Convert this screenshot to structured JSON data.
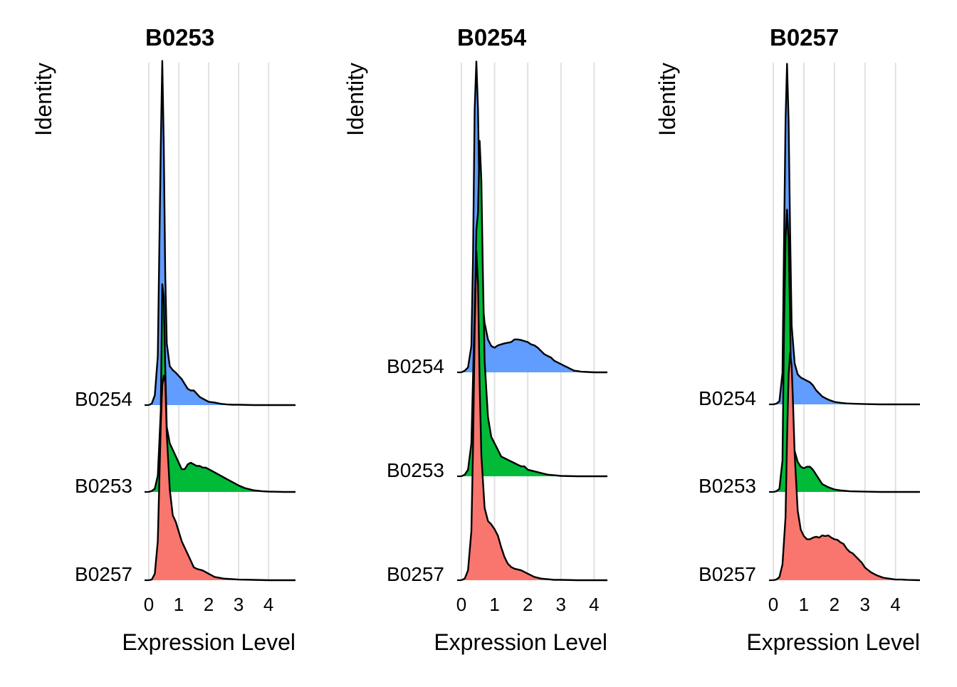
{
  "chart_data": [
    {
      "type": "ridgeline",
      "title": "B0253",
      "xlabel": "Expression Level",
      "ylabel": "Identity",
      "xticks": [
        0,
        1,
        2,
        3,
        4
      ],
      "xlim": [
        0,
        4.9
      ],
      "identities": [
        "B0254",
        "B0253",
        "B0257"
      ],
      "series": [
        {
          "name": "B0254",
          "color": "#619CFF",
          "x": [
            0,
            0.1,
            0.2,
            0.3,
            0.4,
            0.45,
            0.5,
            0.55,
            0.6,
            0.7,
            0.8,
            0.9,
            1.0,
            1.1,
            1.2,
            1.3,
            1.4,
            1.5,
            1.6,
            1.7,
            1.8,
            1.9,
            2.0,
            2.2,
            2.4,
            2.6,
            2.8,
            3.0,
            3.5,
            4.0,
            4.5,
            4.9
          ],
          "density": [
            0,
            0.05,
            0.3,
            1.5,
            8.0,
            10.6,
            8.0,
            4.0,
            1.9,
            1.2,
            1.08,
            1.0,
            0.9,
            0.8,
            0.65,
            0.5,
            0.45,
            0.45,
            0.35,
            0.25,
            0.2,
            0.15,
            0.1,
            0.08,
            0.04,
            0.02,
            0.01,
            0.01,
            0,
            0,
            0,
            0
          ]
        },
        {
          "name": "B0253",
          "color": "#00BA38",
          "x": [
            0,
            0.1,
            0.2,
            0.3,
            0.4,
            0.45,
            0.5,
            0.55,
            0.6,
            0.7,
            0.8,
            0.9,
            1.0,
            1.1,
            1.2,
            1.3,
            1.4,
            1.5,
            1.6,
            1.7,
            1.8,
            1.9,
            2.0,
            2.2,
            2.4,
            2.6,
            2.8,
            3.0,
            3.2,
            3.5,
            3.8,
            4.0,
            4.5,
            4.9
          ],
          "density": [
            0,
            0.03,
            0.1,
            0.5,
            2.5,
            6.4,
            6.0,
            3.8,
            2.0,
            1.5,
            1.3,
            1.1,
            0.9,
            0.7,
            0.7,
            0.85,
            0.9,
            0.85,
            0.8,
            0.8,
            0.75,
            0.75,
            0.7,
            0.6,
            0.5,
            0.4,
            0.3,
            0.2,
            0.12,
            0.05,
            0.02,
            0.01,
            0,
            0
          ]
        },
        {
          "name": "B0257",
          "color": "#F8766D",
          "x": [
            0,
            0.1,
            0.2,
            0.3,
            0.4,
            0.45,
            0.5,
            0.55,
            0.6,
            0.7,
            0.8,
            0.9,
            1.0,
            1.1,
            1.2,
            1.3,
            1.4,
            1.5,
            1.6,
            1.8,
            2.0,
            2.2,
            2.5,
            3.0,
            3.5,
            4.0,
            4.9
          ],
          "density": [
            0,
            0.02,
            0.2,
            1.2,
            4.8,
            6.0,
            6.3,
            6.1,
            4.5,
            2.8,
            2.0,
            1.8,
            1.5,
            1.2,
            1.0,
            0.8,
            0.6,
            0.4,
            0.35,
            0.3,
            0.2,
            0.1,
            0.05,
            0.02,
            0.01,
            0,
            0
          ]
        }
      ]
    },
    {
      "type": "ridgeline",
      "title": "B0254",
      "xlabel": "Expression Level",
      "ylabel": "Identity",
      "xticks": [
        0,
        1,
        2,
        3,
        4
      ],
      "xlim": [
        0,
        4.4
      ],
      "identities": [
        "B0254",
        "B0253",
        "B0257"
      ],
      "series": [
        {
          "name": "B0254",
          "color": "#619CFF",
          "x": [
            0,
            0.1,
            0.2,
            0.3,
            0.35,
            0.4,
            0.45,
            0.5,
            0.55,
            0.6,
            0.65,
            0.7,
            0.8,
            0.9,
            1.0,
            1.1,
            1.2,
            1.3,
            1.4,
            1.5,
            1.6,
            1.7,
            1.8,
            1.9,
            2.0,
            2.1,
            2.2,
            2.3,
            2.4,
            2.5,
            2.6,
            2.7,
            2.8,
            2.9,
            3.0,
            3.1,
            3.2,
            3.3,
            3.4,
            3.5,
            3.6,
            3.8,
            4.0,
            4.2,
            4.4
          ],
          "density": [
            0,
            0.05,
            0.15,
            0.8,
            3.5,
            8.0,
            9.45,
            8.0,
            5.0,
            3.0,
            2.0,
            1.5,
            1.0,
            0.8,
            0.75,
            0.82,
            0.85,
            0.88,
            0.9,
            0.92,
            1.0,
            1.0,
            0.98,
            0.95,
            0.92,
            0.85,
            0.82,
            0.75,
            0.65,
            0.55,
            0.5,
            0.45,
            0.35,
            0.3,
            0.25,
            0.2,
            0.15,
            0.1,
            0.05,
            0.04,
            0.02,
            0.01,
            0,
            0,
            0
          ]
        },
        {
          "name": "B0253",
          "color": "#00BA38",
          "x": [
            0,
            0.1,
            0.2,
            0.3,
            0.4,
            0.45,
            0.5,
            0.55,
            0.6,
            0.65,
            0.7,
            0.8,
            0.9,
            1.0,
            1.1,
            1.2,
            1.3,
            1.4,
            1.5,
            1.6,
            1.7,
            1.8,
            1.9,
            2.0,
            2.2,
            2.4,
            2.6,
            2.8,
            3.0,
            3.5,
            4.0,
            4.4
          ],
          "density": [
            0,
            0.05,
            0.2,
            1.0,
            5.0,
            7.5,
            8.0,
            10.2,
            9.0,
            6.0,
            3.5,
            1.8,
            1.2,
            1.0,
            0.8,
            0.6,
            0.55,
            0.5,
            0.45,
            0.4,
            0.35,
            0.3,
            0.3,
            0.2,
            0.15,
            0.1,
            0.05,
            0.03,
            0.01,
            0,
            0,
            0
          ]
        },
        {
          "name": "B0257",
          "color": "#F8766D",
          "x": [
            0,
            0.1,
            0.2,
            0.3,
            0.35,
            0.4,
            0.45,
            0.5,
            0.55,
            0.6,
            0.7,
            0.8,
            0.9,
            1.0,
            1.1,
            1.2,
            1.3,
            1.4,
            1.5,
            1.6,
            1.8,
            2.0,
            2.2,
            2.4,
            2.6,
            2.8,
            3.0,
            3.5,
            4.0,
            4.4
          ],
          "density": [
            0,
            0.05,
            0.3,
            1.5,
            4.0,
            7.5,
            10.0,
            9.0,
            6.0,
            3.8,
            2.2,
            1.8,
            1.7,
            1.55,
            1.35,
            1.0,
            0.7,
            0.5,
            0.4,
            0.35,
            0.3,
            0.2,
            0.1,
            0.05,
            0.03,
            0.01,
            0.01,
            0,
            0,
            0
          ]
        }
      ]
    },
    {
      "type": "ridgeline",
      "title": "B0257",
      "xlabel": "Expression Level",
      "ylabel": "Identity",
      "xticks": [
        0,
        1,
        2,
        3,
        4
      ],
      "xlim": [
        0,
        4.8
      ],
      "identities": [
        "B0254",
        "B0253",
        "B0257"
      ],
      "series": [
        {
          "name": "B0254",
          "color": "#619CFF",
          "x": [
            0,
            0.1,
            0.2,
            0.3,
            0.35,
            0.4,
            0.45,
            0.5,
            0.55,
            0.6,
            0.7,
            0.8,
            0.9,
            1.0,
            1.1,
            1.2,
            1.3,
            1.4,
            1.5,
            1.6,
            1.8,
            2.0,
            2.2,
            2.4,
            2.6,
            3.0,
            3.5,
            4.0,
            4.8
          ],
          "density": [
            0,
            0.02,
            0.1,
            1.0,
            5.0,
            9.0,
            10.8,
            9.0,
            5.5,
            2.5,
            1.3,
            0.95,
            0.85,
            0.8,
            0.75,
            0.7,
            0.6,
            0.45,
            0.35,
            0.25,
            0.15,
            0.08,
            0.05,
            0.03,
            0.02,
            0.01,
            0,
            0,
            0
          ]
        },
        {
          "name": "B0253",
          "color": "#00BA38",
          "x": [
            0,
            0.1,
            0.2,
            0.3,
            0.35,
            0.4,
            0.45,
            0.5,
            0.55,
            0.6,
            0.7,
            0.8,
            0.9,
            1.0,
            1.1,
            1.2,
            1.3,
            1.4,
            1.5,
            1.6,
            1.8,
            2.0,
            2.2,
            2.5,
            3.0,
            3.5,
            4.0,
            4.8
          ],
          "density": [
            0,
            0.02,
            0.1,
            1.0,
            5.0,
            8.0,
            8.95,
            8.0,
            5.5,
            2.5,
            1.3,
            0.95,
            0.8,
            0.75,
            0.8,
            0.8,
            0.7,
            0.55,
            0.4,
            0.25,
            0.15,
            0.08,
            0.05,
            0.02,
            0.01,
            0,
            0,
            0
          ]
        },
        {
          "name": "B0257",
          "color": "#F8766D",
          "x": [
            0,
            0.1,
            0.2,
            0.3,
            0.4,
            0.45,
            0.5,
            0.55,
            0.6,
            0.65,
            0.7,
            0.8,
            0.9,
            1.0,
            1.1,
            1.2,
            1.3,
            1.4,
            1.5,
            1.6,
            1.7,
            1.8,
            1.9,
            2.0,
            2.1,
            2.2,
            2.3,
            2.4,
            2.5,
            2.6,
            2.7,
            2.8,
            2.9,
            3.0,
            3.2,
            3.4,
            3.6,
            3.8,
            4.0,
            4.2,
            4.4,
            4.8
          ],
          "density": [
            0,
            0.02,
            0.1,
            0.5,
            2.0,
            4.5,
            6.5,
            7.2,
            6.8,
            5.5,
            4.0,
            2.2,
            1.6,
            1.4,
            1.3,
            1.3,
            1.35,
            1.38,
            1.35,
            1.42,
            1.4,
            1.42,
            1.35,
            1.3,
            1.28,
            1.2,
            1.15,
            1.0,
            0.9,
            0.85,
            0.75,
            0.65,
            0.55,
            0.4,
            0.25,
            0.15,
            0.08,
            0.05,
            0.02,
            0.02,
            0.01,
            0
          ]
        }
      ]
    }
  ]
}
